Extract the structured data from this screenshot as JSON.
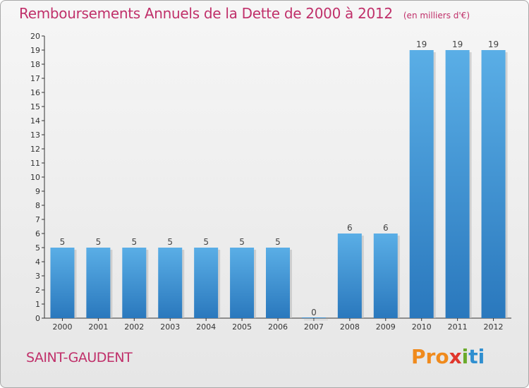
{
  "header": {
    "title": "Remboursements Annuels de la Dette de 2000 à 2012",
    "subtitle": "(en milliers d'€)"
  },
  "footer": {
    "commune": "SAINT-GAUDENT",
    "logo_parts": [
      "Pro",
      "x",
      "i",
      "ti"
    ]
  },
  "colors": {
    "title": "#c0306a",
    "bar_light": "#5aaee6",
    "bar_dark": "#2a78bd",
    "axis": "#333333"
  },
  "chart_data": {
    "type": "bar",
    "title": "Remboursements Annuels de la Dette de 2000 à 2012",
    "subtitle": "(en milliers d'€)",
    "categories": [
      "2000",
      "2001",
      "2002",
      "2003",
      "2004",
      "2005",
      "2006",
      "2007",
      "2008",
      "2009",
      "2010",
      "2011",
      "2012"
    ],
    "values": [
      5,
      5,
      5,
      5,
      5,
      5,
      5,
      0,
      6,
      6,
      19,
      19,
      19
    ],
    "ylim": [
      0,
      20
    ],
    "yticks": [
      0,
      1,
      2,
      3,
      4,
      5,
      6,
      7,
      8,
      9,
      10,
      11,
      12,
      13,
      14,
      15,
      16,
      17,
      18,
      19,
      20
    ],
    "grid": false,
    "legend": "none"
  }
}
